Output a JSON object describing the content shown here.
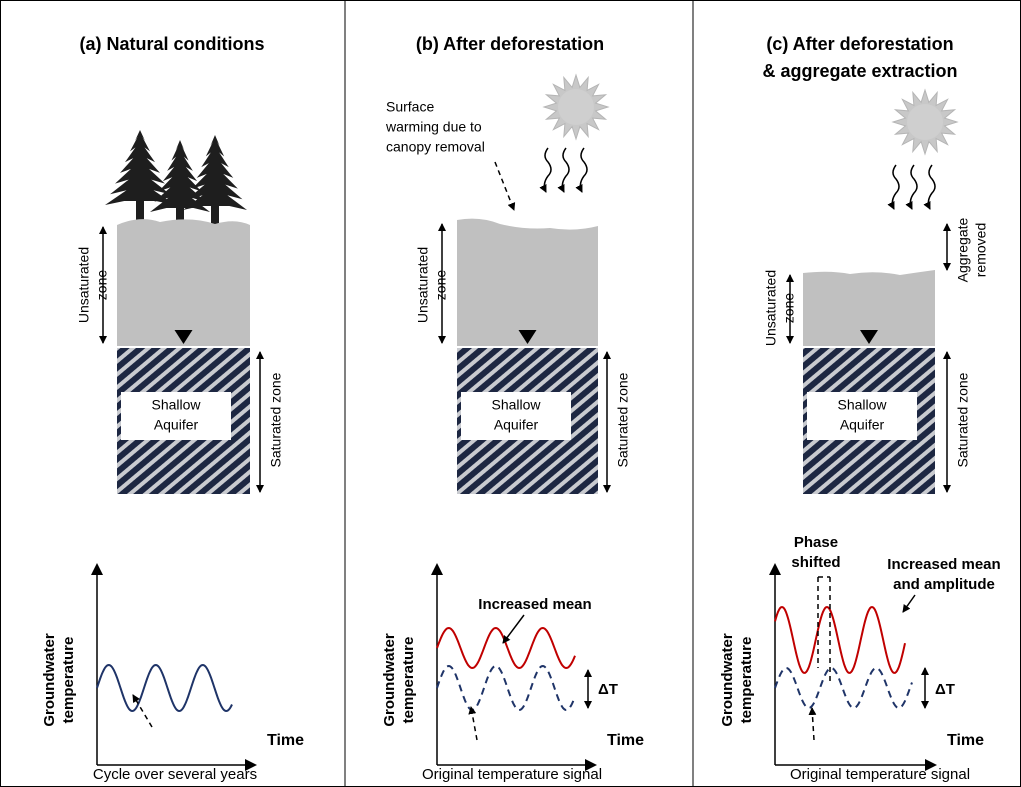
{
  "panels": [
    {
      "title": [
        "(a) Natural conditions"
      ],
      "unsaturated_zone": [
        "Unsaturated",
        "zone"
      ],
      "saturated_zone": "Saturated zone",
      "aquifer": [
        "Shallow",
        "Aquifer"
      ],
      "y_axis_label": [
        "Groundwater",
        "temperature"
      ],
      "x_axis_label": "Time",
      "caption": "Cycle over several years"
    },
    {
      "title": [
        "(b) After deforestation"
      ],
      "annotation": [
        "Surface",
        "warming due to",
        "canopy removal"
      ],
      "unsaturated_zone": [
        "Unsaturated",
        "zone"
      ],
      "saturated_zone": "Saturated zone",
      "aquifer": [
        "Shallow",
        "Aquifer"
      ],
      "y_axis_label": [
        "Groundwater",
        "temperature"
      ],
      "curve_label": [
        "Increased mean"
      ],
      "delta_label": "ΔT",
      "x_axis_label": "Time",
      "caption": "Original temperature signal"
    },
    {
      "title": [
        "(c) After deforestation",
        "& aggregate extraction"
      ],
      "aggregate_label": [
        "Aggregate",
        "removed"
      ],
      "unsaturated_zone": [
        "Unsaturated",
        "zone"
      ],
      "saturated_zone": "Saturated zone",
      "aquifer": [
        "Shallow",
        "Aquifer"
      ],
      "y_axis_label": [
        "Groundwater",
        "temperature"
      ],
      "phase_label": [
        "Phase",
        "shifted"
      ],
      "curve_label": [
        "Increased mean",
        "and amplitude"
      ],
      "delta_label": "ΔT",
      "x_axis_label": "Time",
      "caption": "Original temperature signal"
    }
  ]
}
